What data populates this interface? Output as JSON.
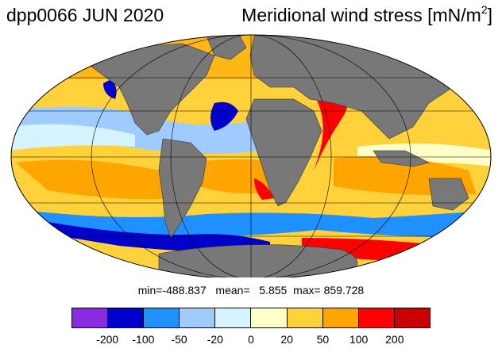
{
  "title": {
    "left": "dpp0066 JUN 2020",
    "right_main": "Meridional wind stress [mN/m",
    "right_sup": "2",
    "right_end": "]"
  },
  "stats": {
    "text": "min=-488.837   mean=   5.855  max= 859.728"
  },
  "colorbar": {
    "colors": [
      "#8a2be2",
      "#0000cd",
      "#1e90ff",
      "#a0cbff",
      "#d6f4ff",
      "#ffffc8",
      "#ffd23c",
      "#ffa500",
      "#ff0000",
      "#c80000"
    ],
    "ticks": [
      "-200",
      "-100",
      "-50",
      "-20",
      "0",
      "20",
      "50",
      "100",
      "200"
    ]
  },
  "map": {
    "projection": "mollweide",
    "land_color": "#787878",
    "ocean_base_color": "#ffd23c"
  }
}
